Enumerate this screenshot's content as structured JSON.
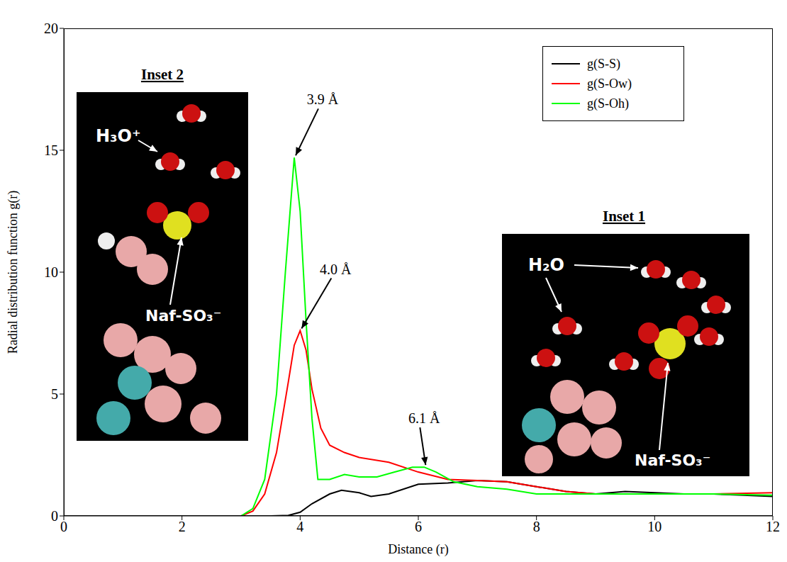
{
  "chart_data": {
    "type": "line",
    "x_label": "Distance (r)",
    "y_label": "Radial distribution function g(r)",
    "xlim": [
      0,
      12
    ],
    "xticks": [
      0,
      2,
      4,
      6,
      8,
      10,
      12
    ],
    "ylim": [
      0,
      20
    ],
    "yticks": [
      0,
      5,
      10,
      15,
      20
    ],
    "grid": false,
    "legend": "upper right",
    "series": [
      {
        "name": "g(S-S)",
        "color": "#000000",
        "x": [
          3.0,
          3.5,
          3.8,
          4.0,
          4.2,
          4.5,
          4.7,
          5.0,
          5.2,
          5.5,
          6.0,
          6.5,
          7.0,
          7.5,
          8.0,
          8.5,
          9.0,
          9.5,
          10,
          10.5,
          11,
          11.5,
          12
        ],
        "values": [
          0,
          0,
          0.02,
          0.15,
          0.5,
          0.9,
          1.05,
          0.95,
          0.8,
          0.9,
          1.3,
          1.35,
          1.45,
          1.4,
          1.2,
          1.0,
          0.9,
          1.0,
          0.95,
          0.9,
          0.9,
          0.85,
          0.8
        ]
      },
      {
        "name": "g(S-Ow)",
        "color": "#ff0000",
        "x": [
          1,
          3.0,
          3.2,
          3.4,
          3.6,
          3.8,
          3.9,
          4.0,
          4.1,
          4.2,
          4.35,
          4.5,
          4.75,
          5.0,
          5.5,
          6.0,
          6.5,
          7.0,
          7.5,
          8.0,
          8.5,
          9.0,
          10,
          11,
          12
        ],
        "values": [
          0,
          0,
          0.2,
          0.9,
          2.6,
          5.5,
          7.0,
          7.6,
          6.8,
          5.2,
          3.6,
          2.9,
          2.6,
          2.4,
          2.2,
          1.8,
          1.5,
          1.45,
          1.4,
          1.2,
          1.0,
          0.9,
          0.9,
          0.9,
          0.95
        ]
      },
      {
        "name": "g(S-Oh)",
        "color": "#00ff00",
        "x": [
          1,
          3.0,
          3.2,
          3.4,
          3.6,
          3.75,
          3.9,
          4.0,
          4.1,
          4.2,
          4.3,
          4.5,
          4.75,
          5.0,
          5.3,
          5.6,
          5.9,
          6.1,
          6.3,
          6.6,
          7.0,
          7.5,
          8.0,
          8.5,
          9,
          10,
          11,
          12
        ],
        "values": [
          0,
          0,
          0.3,
          1.5,
          5,
          10,
          14.7,
          12.5,
          8,
          4,
          1.5,
          1.5,
          1.7,
          1.6,
          1.6,
          1.8,
          2.0,
          2.0,
          1.8,
          1.4,
          1.2,
          1.1,
          0.9,
          0.9,
          0.9,
          0.9,
          0.9,
          0.85
        ]
      }
    ],
    "annotations": [
      {
        "text": "3.9 Å",
        "x": 3.9,
        "y": 14.7
      },
      {
        "text": "4.0 Å",
        "x": 4.0,
        "y": 7.6
      },
      {
        "text": "6.1 Å",
        "x": 6.1,
        "y": 2.0
      }
    ],
    "insets": [
      {
        "title": "Inset 2",
        "labels": [
          "H₃O⁺",
          "Naf-SO₃⁻"
        ]
      },
      {
        "title": "Inset 1",
        "labels": [
          "H₂O",
          "Naf-SO₃⁻"
        ]
      }
    ]
  }
}
